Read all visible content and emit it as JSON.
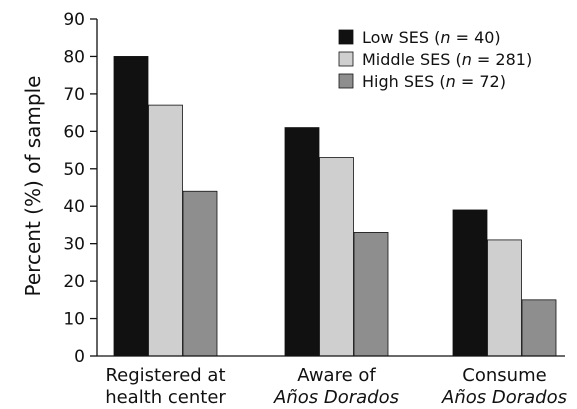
{
  "chart_data": {
    "type": "bar",
    "ylabel": "Percent (%) of sample",
    "ylim": [
      0,
      90
    ],
    "yticks": [
      0,
      10,
      20,
      30,
      40,
      50,
      60,
      70,
      80,
      90
    ],
    "grid": false,
    "legend_position": "top-right",
    "categories": [
      {
        "line1": "Registered at",
        "line2": "health center",
        "line2_italic": false
      },
      {
        "line1": "Aware of",
        "line2": "Años Dorados",
        "line2_italic": true
      },
      {
        "line1": "Consume",
        "line2": "Años Dorados",
        "line2_italic": true
      }
    ],
    "series": [
      {
        "name": "Low SES",
        "n_label": "n",
        "n_value": "= 40)",
        "color": "#111111",
        "values": [
          80,
          61,
          39
        ]
      },
      {
        "name": "Middle SES",
        "n_label": "n",
        "n_value": "= 281)",
        "color": "#cfcfcf",
        "values": [
          67,
          53,
          31
        ]
      },
      {
        "name": "High SES",
        "n_label": "n",
        "n_value": "= 72)",
        "color": "#8e8e8e",
        "values": [
          44,
          33,
          15
        ]
      }
    ]
  }
}
